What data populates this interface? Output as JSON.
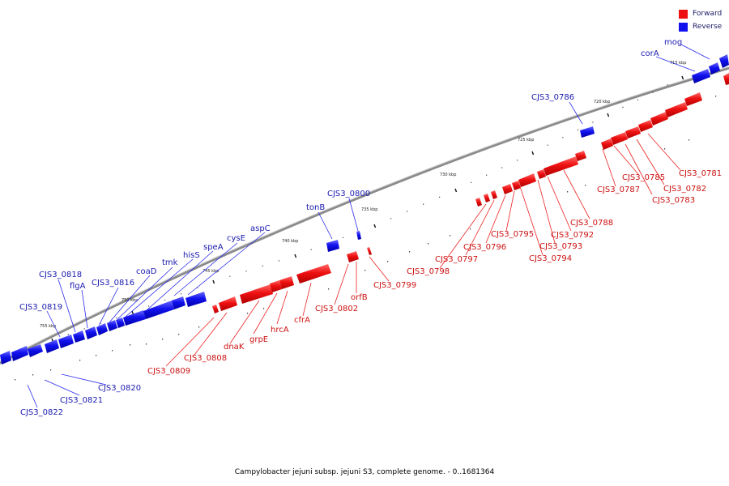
{
  "legend": {
    "forward_label": "Forward",
    "reverse_label": "Reverse",
    "forward_color": "#ee1111",
    "reverse_color": "#1111ee"
  },
  "caption": "Campylobacter jejuni subsp. jejuni S3, complete genome. - 0..1681364",
  "tick_labels": [
    "715 kbp",
    "720 kbp",
    "725 kbp",
    "730 kbp",
    "735 kbp",
    "740 kbp",
    "745 kbp",
    "750 kbp",
    "755 kbp"
  ],
  "genes": {
    "forward": [
      "CJS3_0781",
      "CJS3_0782",
      "CJS3_0783",
      "CJS3_0785",
      "CJS3_0787",
      "CJS3_0788",
      "CJS3_0792",
      "CJS3_0793",
      "CJS3_0794",
      "CJS3_0795",
      "CJS3_0796",
      "CJS3_0797",
      "CJS3_0798",
      "CJS3_0799",
      "orfB",
      "CJS3_0802",
      "cfrA",
      "hrcA",
      "grpE",
      "dnaK",
      "CJS3_0808",
      "CJS3_0809"
    ],
    "reverse": [
      "mog",
      "corA",
      "CJS3_0786",
      "CJS3_0800",
      "tonB",
      "aspC",
      "cysE",
      "speA",
      "hisS",
      "tmk",
      "coaD",
      "CJS3_0816",
      "flgA",
      "CJS3_0818",
      "CJS3_0819",
      "CJS3_0820",
      "CJS3_0821",
      "CJS3_0822"
    ]
  }
}
